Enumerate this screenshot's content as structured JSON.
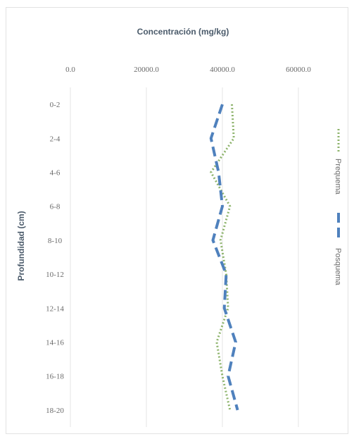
{
  "chart_data": {
    "type": "line",
    "orientation": "vertical-profile",
    "title": "Concentración (mg/kg)",
    "xlabel": "",
    "ylabel": "Profundidad (cm)",
    "xlim": [
      0,
      60000
    ],
    "x_ticks": [
      "0.0",
      "20000.0",
      "40000.0",
      "60000.0"
    ],
    "categories": [
      "0-2",
      "2-4",
      "4-6",
      "6-8",
      "8-10",
      "10-12",
      "12-14",
      "14-16",
      "16-18",
      "18-20"
    ],
    "grid": true,
    "legend_position": "right",
    "series": [
      {
        "name": "Prequema",
        "color": "#8db36b",
        "style": "dotted",
        "values": [
          42500,
          43000,
          37000,
          42000,
          39500,
          41000,
          41500,
          38500,
          40000,
          42000
        ]
      },
      {
        "name": "Posquema",
        "color": "#4f81bd",
        "style": "dashed",
        "values": [
          40000,
          37000,
          39000,
          40000,
          37500,
          41000,
          40500,
          43500,
          41500,
          44000
        ]
      }
    ]
  }
}
